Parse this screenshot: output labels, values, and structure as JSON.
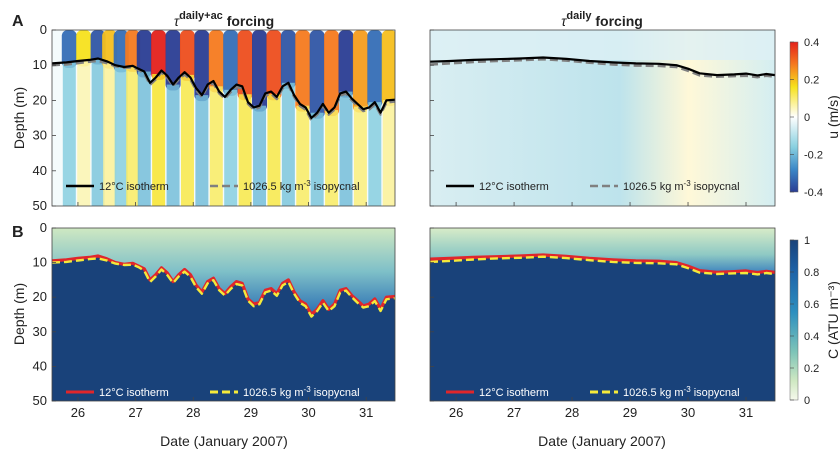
{
  "panel_labels": [
    "A",
    "B"
  ],
  "titles": {
    "left": {
      "sym": "τ",
      "sup": "daily+ac",
      "rest": " forcing"
    },
    "right": {
      "sym": "τ",
      "sup": "daily",
      "rest": " forcing"
    }
  },
  "ylabel": "Depth (m)",
  "xlabel": "Date (January 2007)",
  "colorbars": {
    "top": {
      "label": "u (m/s)",
      "ticks": [
        "0.4",
        "0.2",
        "0",
        "-0.2",
        "-0.4"
      ]
    },
    "bottom": {
      "label": "C (ATU m⁻³)",
      "ticks": [
        "1",
        "0.8",
        "0.6",
        "0.4",
        "0.2",
        "0"
      ]
    }
  },
  "legend": {
    "isotherm": "12°C isotherm",
    "isopycnal_prefix": "1026.5 kg m",
    "isopycnal_sup": "-3",
    "isopycnal_suffix": " isopycnal"
  },
  "colors": {
    "isotherm_top": "#000000",
    "isopycnal_top": "#808080",
    "isotherm_bottom": "#e0262b",
    "isopycnal_bottom": "#f4e93a",
    "deep_water": "#19427a"
  },
  "chart_data": {
    "type": "heatmap",
    "x_ticks": [
      26,
      27,
      28,
      29,
      30,
      31
    ],
    "y_ticks": [
      0,
      10,
      20,
      30,
      40,
      50
    ],
    "xlim": [
      25.55,
      31.5
    ],
    "ylim": [
      50,
      0
    ],
    "isotherm_daily_ac": {
      "x": [
        25.55,
        25.8,
        26.0,
        26.2,
        26.35,
        26.5,
        26.65,
        26.8,
        26.95,
        27.05,
        27.15,
        27.25,
        27.35,
        27.45,
        27.55,
        27.65,
        27.75,
        27.85,
        27.95,
        28.05,
        28.15,
        28.25,
        28.35,
        28.45,
        28.55,
        28.65,
        28.75,
        28.85,
        28.95,
        29.05,
        29.15,
        29.25,
        29.35,
        29.45,
        29.55,
        29.65,
        29.75,
        29.85,
        29.95,
        30.05,
        30.15,
        30.25,
        30.35,
        30.45,
        30.55,
        30.65,
        30.75,
        30.85,
        30.95,
        31.05,
        31.15,
        31.25,
        31.35,
        31.5
      ],
      "y": [
        9.5,
        9.2,
        8.8,
        8.5,
        8.1,
        8.9,
        10.0,
        10.5,
        10.2,
        11.0,
        11.8,
        15.0,
        13.5,
        11.5,
        13.0,
        15.5,
        13.5,
        12.0,
        13.5,
        16.5,
        18.5,
        15.5,
        14.5,
        17.5,
        19.0,
        17.0,
        15.5,
        16.0,
        20.5,
        22.0,
        21.5,
        18.0,
        17.5,
        19.0,
        16.0,
        15.0,
        18.5,
        21.0,
        22.0,
        25.0,
        23.5,
        21.0,
        23.5,
        22.0,
        18.0,
        17.5,
        19.5,
        21.0,
        22.5,
        22.0,
        20.5,
        23.5,
        20.0,
        19.8
      ]
    },
    "isopycnal_daily_ac": {
      "x": [
        25.55,
        25.8,
        26.0,
        26.2,
        26.35,
        26.5,
        26.65,
        26.8,
        26.95,
        27.05,
        27.15,
        27.25,
        27.35,
        27.45,
        27.55,
        27.65,
        27.75,
        27.85,
        27.95,
        28.05,
        28.15,
        28.25,
        28.35,
        28.45,
        28.55,
        28.65,
        28.75,
        28.85,
        28.95,
        29.05,
        29.15,
        29.25,
        29.35,
        29.45,
        29.55,
        29.65,
        29.75,
        29.85,
        29.95,
        30.05,
        30.15,
        30.25,
        30.35,
        30.45,
        30.55,
        30.65,
        30.75,
        30.85,
        30.95,
        31.05,
        31.15,
        31.25,
        31.35,
        31.5
      ],
      "y": [
        10.0,
        9.8,
        9.4,
        9.0,
        8.8,
        9.4,
        10.3,
        10.7,
        10.6,
        11.3,
        12.3,
        15.6,
        14.0,
        12.0,
        13.6,
        15.9,
        14.0,
        12.6,
        14.1,
        17.1,
        19.0,
        16.0,
        15.1,
        18.0,
        19.5,
        17.6,
        16.2,
        16.6,
        21.0,
        22.6,
        22.0,
        18.6,
        18.1,
        19.6,
        16.6,
        15.6,
        19.0,
        21.6,
        22.6,
        25.6,
        24.0,
        21.6,
        24.0,
        22.6,
        18.6,
        18.1,
        20.0,
        21.6,
        23.0,
        22.6,
        21.1,
        24.0,
        20.6,
        20.3
      ]
    },
    "isotherm_daily": {
      "x": [
        25.55,
        25.9,
        26.3,
        26.7,
        27.1,
        27.5,
        27.9,
        28.3,
        28.7,
        29.1,
        29.5,
        29.8,
        30.0,
        30.2,
        30.5,
        30.8,
        31.0,
        31.2,
        31.35,
        31.5
      ],
      "y": [
        9.0,
        8.8,
        8.5,
        8.3,
        8.1,
        7.8,
        8.2,
        8.8,
        9.2,
        9.5,
        9.6,
        10.0,
        11.0,
        12.3,
        12.8,
        12.6,
        12.4,
        12.9,
        12.5,
        12.8
      ]
    },
    "isopycnal_daily": {
      "x": [
        25.55,
        25.9,
        26.3,
        26.7,
        27.1,
        27.5,
        27.9,
        28.3,
        28.7,
        29.1,
        29.5,
        29.8,
        30.0,
        30.2,
        30.5,
        30.8,
        31.0,
        31.2,
        31.35,
        31.5
      ],
      "y": [
        9.8,
        9.5,
        9.1,
        8.8,
        8.6,
        8.3,
        8.7,
        9.3,
        9.8,
        10.1,
        10.2,
        10.5,
        11.6,
        12.9,
        13.3,
        13.1,
        13.0,
        13.4,
        13.0,
        13.3
      ]
    },
    "u_bands_daily_ac": [
      {
        "x": 25.85,
        "u": -0.3
      },
      {
        "x": 26.1,
        "u": 0.15
      },
      {
        "x": 26.35,
        "u": -0.35
      },
      {
        "x": 26.55,
        "u": 0.2
      },
      {
        "x": 26.75,
        "u": -0.3
      },
      {
        "x": 26.95,
        "u": 0.3
      },
      {
        "x": 27.15,
        "u": -0.4
      },
      {
        "x": 27.4,
        "u": 0.4
      },
      {
        "x": 27.65,
        "u": -0.4
      },
      {
        "x": 27.9,
        "u": 0.35
      },
      {
        "x": 28.15,
        "u": -0.4
      },
      {
        "x": 28.4,
        "u": 0.3
      },
      {
        "x": 28.65,
        "u": -0.3
      },
      {
        "x": 28.9,
        "u": 0.35
      },
      {
        "x": 29.15,
        "u": -0.4
      },
      {
        "x": 29.4,
        "u": 0.35
      },
      {
        "x": 29.65,
        "u": -0.35
      },
      {
        "x": 29.9,
        "u": 0.3
      },
      {
        "x": 30.15,
        "u": -0.35
      },
      {
        "x": 30.4,
        "u": 0.3
      },
      {
        "x": 30.65,
        "u": -0.4
      },
      {
        "x": 30.9,
        "u": 0.25
      },
      {
        "x": 31.15,
        "u": -0.3
      },
      {
        "x": 31.4,
        "u": 0.2
      }
    ]
  }
}
